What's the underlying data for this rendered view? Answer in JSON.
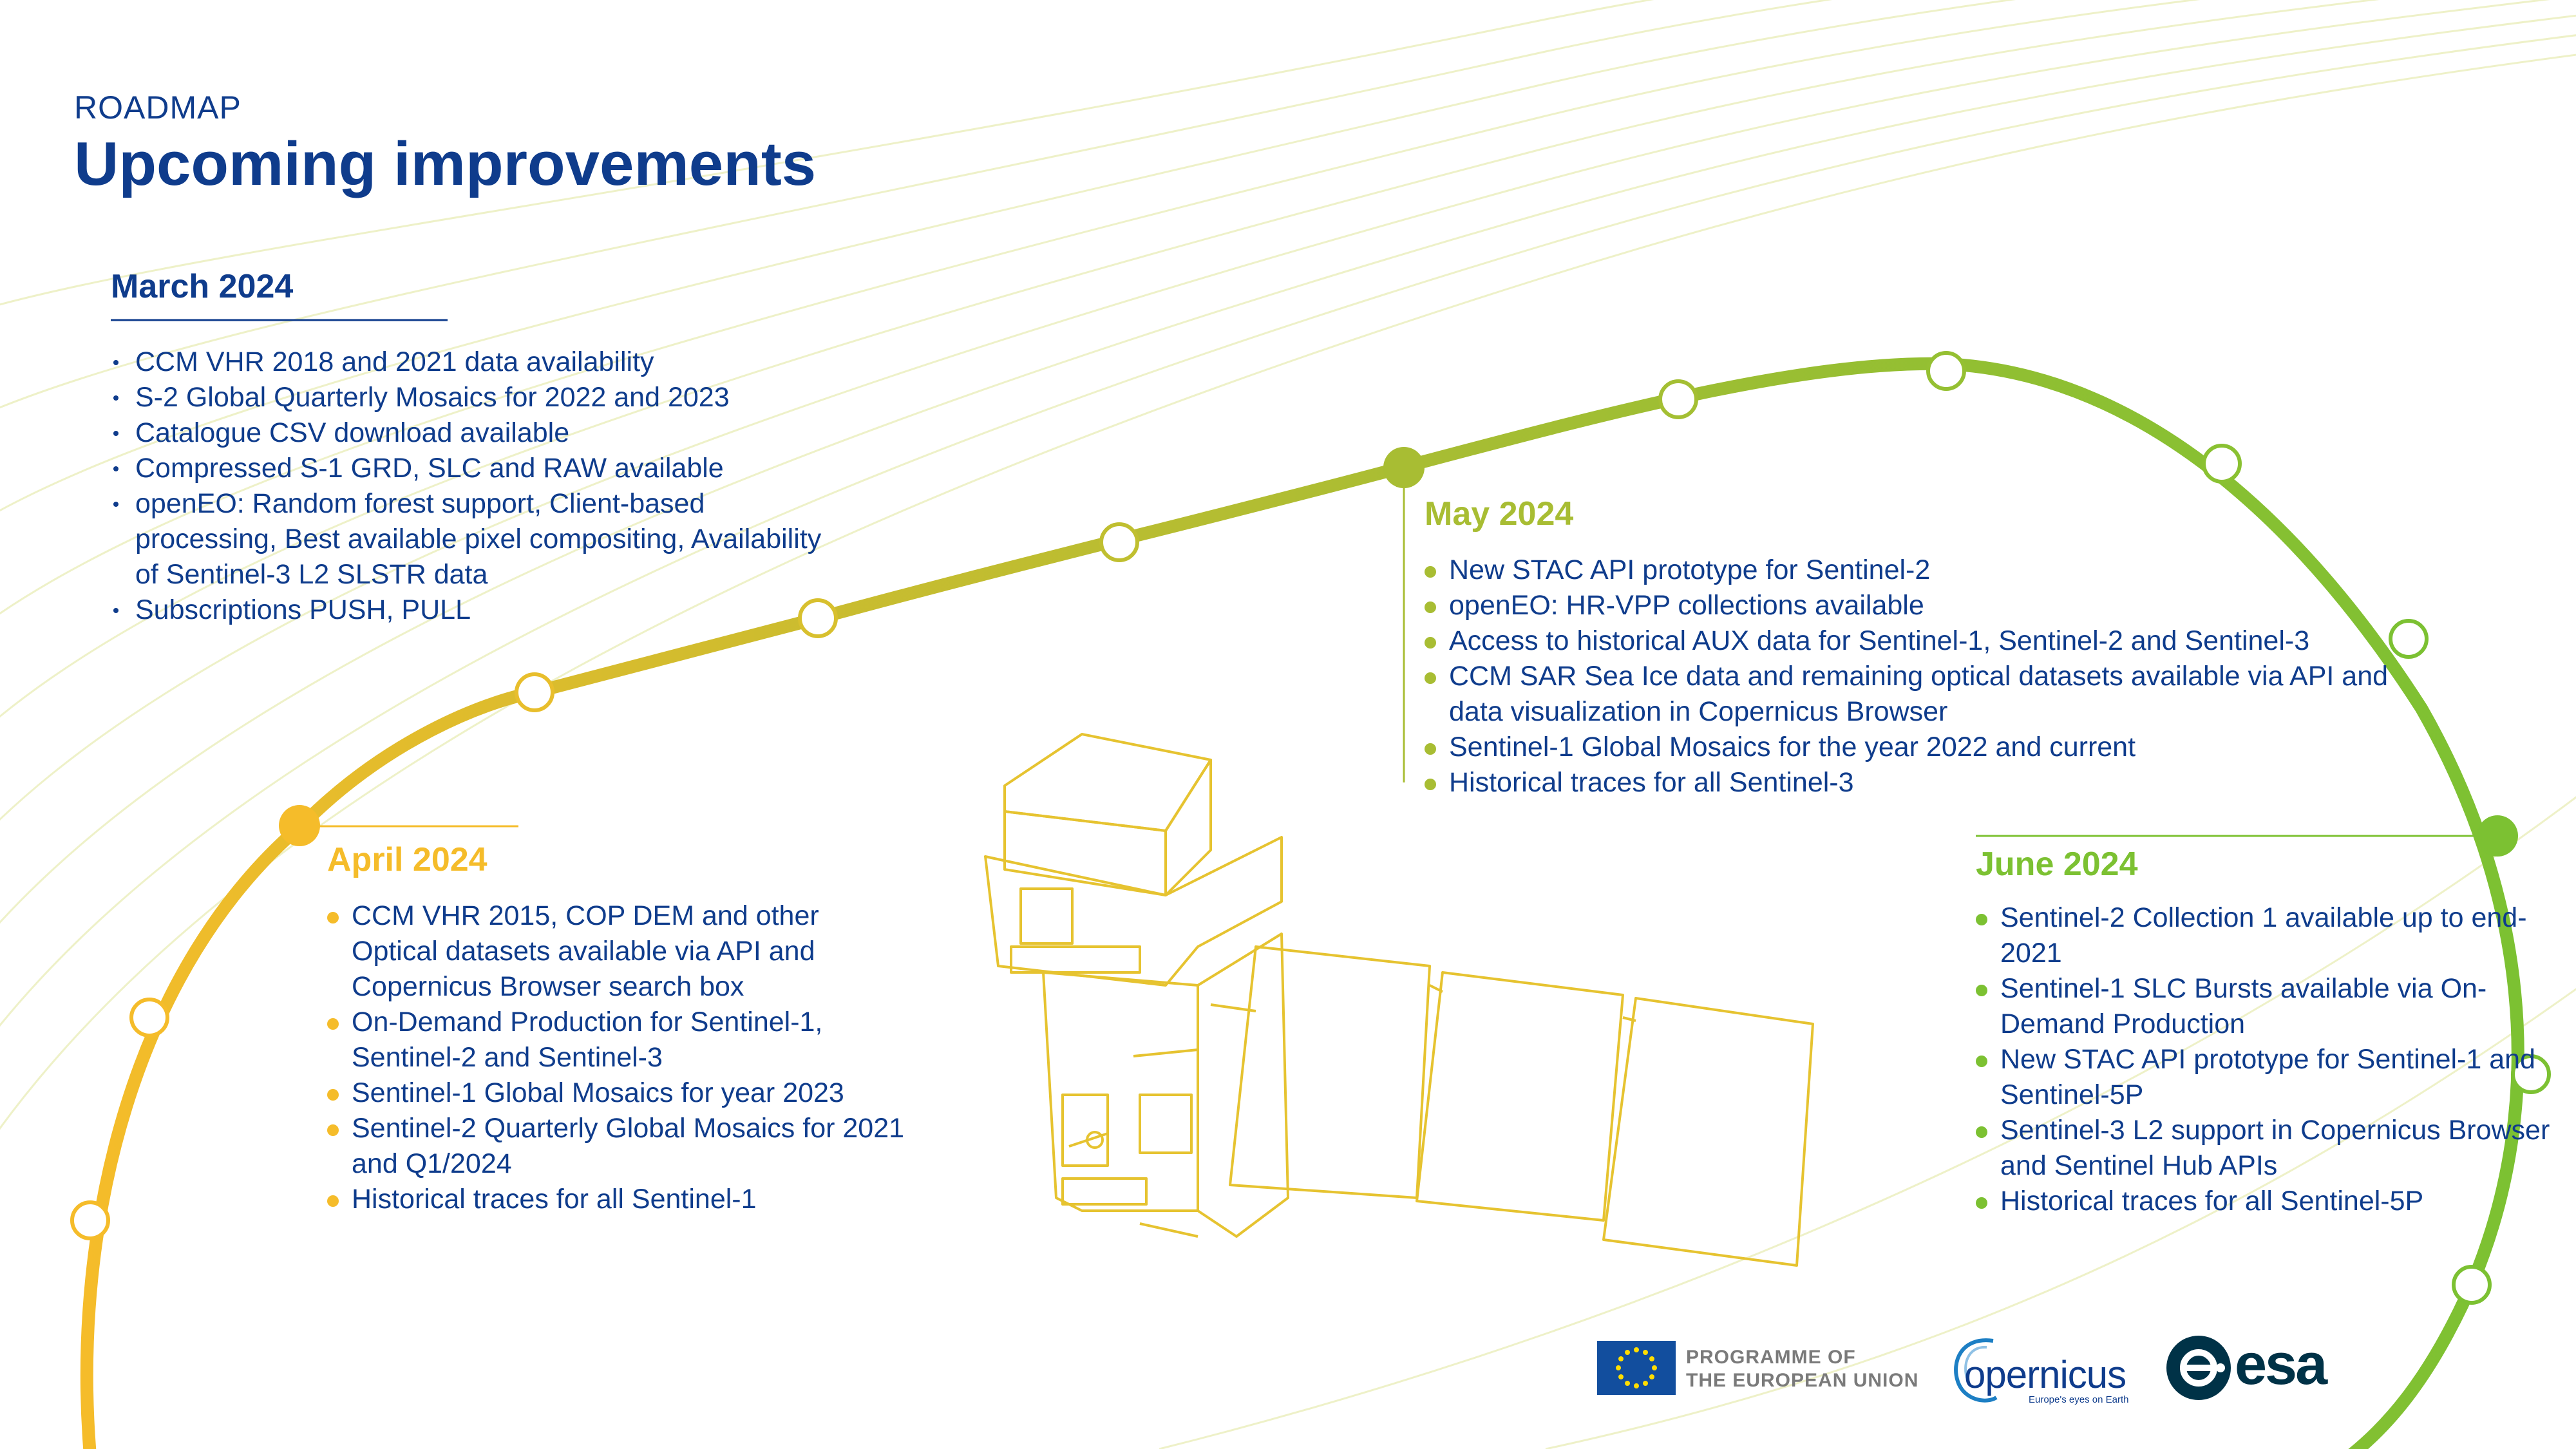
{
  "header": {
    "eyebrow": "ROADMAP",
    "title": "Upcoming improvements"
  },
  "colors": {
    "navy": "#0f3c8c",
    "march": "#0f3c8c",
    "april": "#f5bc2a",
    "may": "#a8bd33",
    "june": "#7cc132"
  },
  "phases": {
    "march": {
      "label": "March 2024",
      "items": [
        "CCM VHR 2018 and 2021 data availability",
        "S-2 Global Quarterly Mosaics for 2022 and 2023",
        "Catalogue CSV download available",
        "Compressed S-1 GRD, SLC and RAW available",
        "openEO: Random forest support, Client-based processing, Best available pixel compositing, Availability of Sentinel-3 L2 SLSTR data",
        "Subscriptions PUSH, PULL"
      ]
    },
    "april": {
      "label": "April 2024",
      "items": [
        "CCM VHR 2015, COP DEM and other Optical datasets available via API and Copernicus Browser search box",
        "On-Demand Production for Sentinel-1, Sentinel-2 and Sentinel-3",
        "Sentinel-1 Global Mosaics for year 2023",
        "Sentinel-2 Quarterly Global Mosaics for 2021 and Q1/2024",
        "Historical traces for all Sentinel-1"
      ]
    },
    "may": {
      "label": "May 2024",
      "items": [
        "New STAC API prototype for Sentinel-2",
        "openEO: HR-VPP collections available",
        "Access to historical AUX data for Sentinel-1, Sentinel-2 and Sentinel-3",
        "CCM SAR Sea Ice data and remaining optical datasets available via API and data visualization in Copernicus Browser",
        "Sentinel-1 Global Mosaics for the year 2022 and current",
        "Historical traces for all Sentinel-3"
      ]
    },
    "june": {
      "label": "June 2024",
      "items": [
        "Sentinel-2 Collection 1 available up to end-2021",
        "Sentinel-1 SLC Bursts available via On-Demand Production",
        "New STAC API prototype for Sentinel-1 and Sentinel-5P",
        "Sentinel-3 L2 support in Copernicus Browser and Sentinel Hub APIs",
        "Historical traces for all Sentinel-5P"
      ]
    }
  },
  "footer": {
    "eu_line1": "PROGRAMME OF",
    "eu_line2": "THE EUROPEAN UNION",
    "copernicus_word": "opernicus",
    "copernicus_tagline": "Europe's eyes on Earth",
    "esa_word": "esa"
  },
  "icons": {
    "eu": "eu-flag-icon",
    "copernicus": "copernicus-logo-icon",
    "esa": "esa-logo-icon",
    "satellite": "satellite-illustration"
  }
}
